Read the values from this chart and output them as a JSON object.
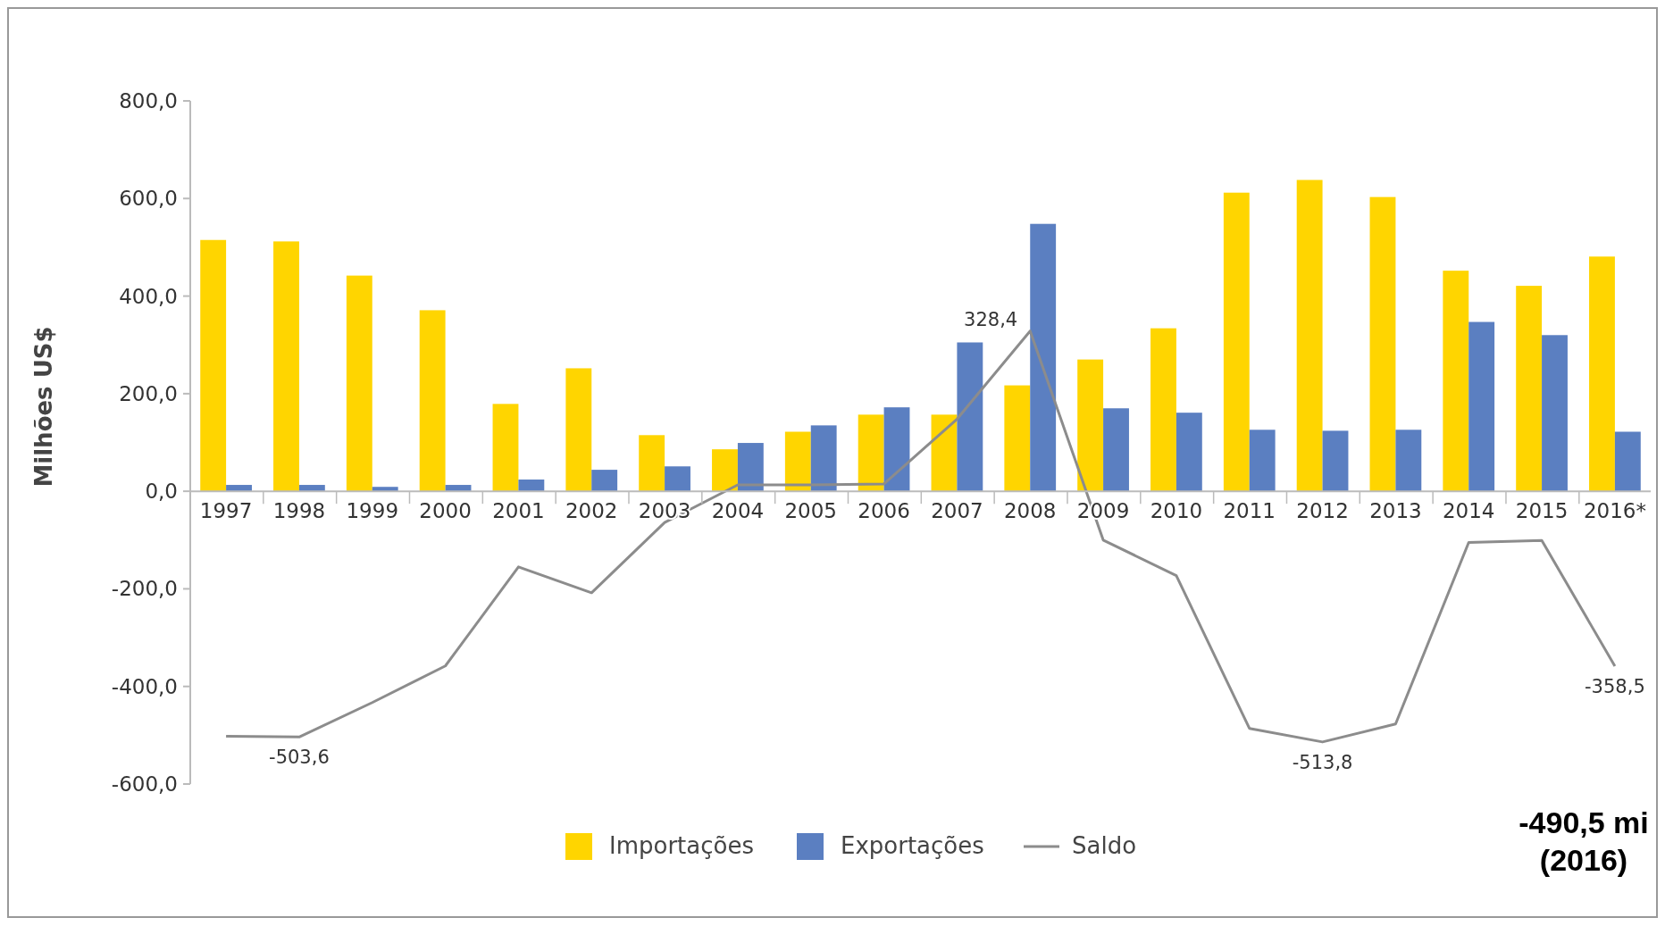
{
  "chart_data": {
    "type": "bar",
    "ylabel": "Milhões US$",
    "categories": [
      "1997",
      "1998",
      "1999",
      "2000",
      "2001",
      "2002",
      "2003",
      "2004",
      "2005",
      "2006",
      "2007",
      "2008",
      "2009",
      "2010",
      "2011",
      "2012",
      "2013",
      "2014",
      "2015",
      "2016*"
    ],
    "series": [
      {
        "name": "Importações",
        "color": "#ffd500",
        "values": [
          515,
          512,
          442,
          371,
          179,
          252,
          115,
          86,
          122,
          157,
          157,
          217,
          270,
          334,
          612,
          638,
          603,
          452,
          421,
          481
        ]
      },
      {
        "name": "Exportações",
        "color": "#5b7fc1",
        "values": [
          13,
          13,
          9,
          13,
          24,
          44,
          51,
          99,
          135,
          172,
          305,
          548,
          170,
          161,
          126,
          124,
          126,
          347,
          320,
          122
        ]
      },
      {
        "name": "Saldo",
        "type": "line",
        "color": "#8c8c8c",
        "values": [
          -502,
          -503.6,
          -433,
          -358,
          -155,
          -208,
          -64,
          13,
          13,
          15,
          148,
          328.4,
          -100,
          -173,
          -486,
          -513.8,
          -477,
          -105,
          -101,
          -358.5
        ],
        "value_labels": [
          null,
          "-503,6",
          null,
          null,
          null,
          null,
          null,
          null,
          null,
          null,
          null,
          "328,4",
          null,
          null,
          null,
          "-513,8",
          null,
          null,
          null,
          "-358,5"
        ]
      }
    ],
    "ylim": [
      -600,
      800
    ],
    "yticks": [
      {
        "value": -600,
        "label": "-600,0"
      },
      {
        "value": -400,
        "label": "-400,0"
      },
      {
        "value": -200,
        "label": "-200,0"
      },
      {
        "value": 0,
        "label": "0,0"
      },
      {
        "value": 200,
        "label": "200,0"
      },
      {
        "value": 400,
        "label": "400,0"
      },
      {
        "value": 600,
        "label": "600,0"
      },
      {
        "value": 800,
        "label": "800,0"
      }
    ],
    "legend": "bottom",
    "annotations": [
      "-490,5 mi (2016)"
    ]
  }
}
